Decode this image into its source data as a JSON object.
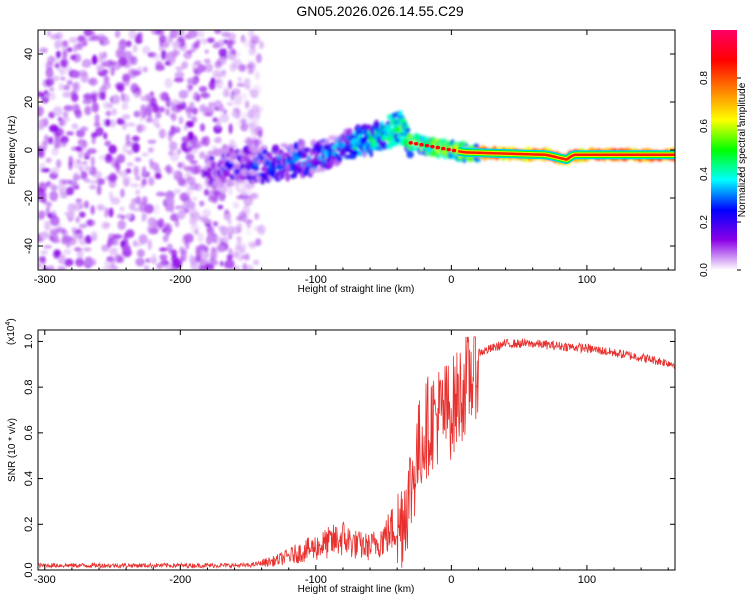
{
  "title": "GN05.2026.026.14.55.C29",
  "chart_data": [
    {
      "type": "heatmap",
      "name": "spectrogram",
      "xlabel": "Height of straight line (km)",
      "ylabel": "Frequency (Hz)",
      "xlim": [
        -305,
        165
      ],
      "ylim": [
        -50,
        50
      ],
      "xticks": [
        -300,
        -200,
        -100,
        0,
        100
      ],
      "xtick_labels": [
        "-300",
        "-200",
        "-100",
        "0",
        "100"
      ],
      "yticks": [
        -40,
        -20,
        0,
        20,
        40
      ],
      "ytick_labels": [
        "-40",
        "-20",
        "0",
        "20",
        "40"
      ],
      "noise_region_x": [
        -305,
        -140
      ],
      "signal_ridge": [
        {
          "x": -180,
          "f": -8
        },
        {
          "x": -140,
          "f": -6
        },
        {
          "x": -100,
          "f": -3
        },
        {
          "x": -70,
          "f": 3
        },
        {
          "x": -50,
          "f": 6
        },
        {
          "x": -38,
          "f": 10
        },
        {
          "x": -30,
          "f": 3
        },
        {
          "x": -10,
          "f": 1
        },
        {
          "x": 10,
          "f": -1
        },
        {
          "x": 70,
          "f": -2
        },
        {
          "x": 85,
          "f": -4
        },
        {
          "x": 90,
          "f": -2
        },
        {
          "x": 165,
          "f": -2
        }
      ],
      "colorbar": {
        "label": "Normalized spectral amplitude",
        "range": [
          0,
          1
        ],
        "ticks": [
          0.0,
          0.2,
          0.4,
          0.6,
          0.8
        ],
        "tick_labels": [
          "0.0",
          "0.2",
          "0.4",
          "0.6",
          "0.8"
        ],
        "colors": [
          "#ffffff",
          "#8a00e6",
          "#0000ff",
          "#00ffff",
          "#00ff00",
          "#ffff00",
          "#ff8000",
          "#ff0000",
          "#ff0066"
        ]
      }
    },
    {
      "type": "line",
      "name": "snr",
      "xlabel": "Height of straight line (km)",
      "ylabel": "SNR (10 * v/v)",
      "scale_label": "(x10",
      "scale_exponent": "4",
      "xlim": [
        -305,
        165
      ],
      "ylim": [
        0,
        1.05
      ],
      "xticks": [
        -300,
        -200,
        -100,
        0,
        100
      ],
      "xtick_labels": [
        "-300",
        "-200",
        "-100",
        "0",
        "100"
      ],
      "yticks": [
        0.0,
        0.2,
        0.4,
        0.6,
        0.8,
        1.0
      ],
      "ytick_labels": [
        "0.0",
        "0.2",
        "0.4",
        "0.6",
        "0.8",
        "1.0"
      ],
      "color": "#e8312e",
      "series": [
        {
          "name": "SNR",
          "x": [
            -305,
            -250,
            -200,
            -150,
            -130,
            -110,
            -90,
            -80,
            -70,
            -60,
            -50,
            -40,
            -30,
            -25,
            -20,
            -15,
            -10,
            0,
            10,
            20,
            30,
            40,
            60,
            80,
            100,
            120,
            140,
            165
          ],
          "y": [
            0.02,
            0.02,
            0.02,
            0.02,
            0.04,
            0.08,
            0.12,
            0.14,
            0.11,
            0.1,
            0.14,
            0.2,
            0.4,
            0.55,
            0.65,
            0.7,
            0.72,
            0.75,
            0.85,
            0.95,
            0.97,
            0.99,
            0.99,
            0.98,
            0.97,
            0.95,
            0.93,
            0.9
          ]
        }
      ]
    }
  ]
}
